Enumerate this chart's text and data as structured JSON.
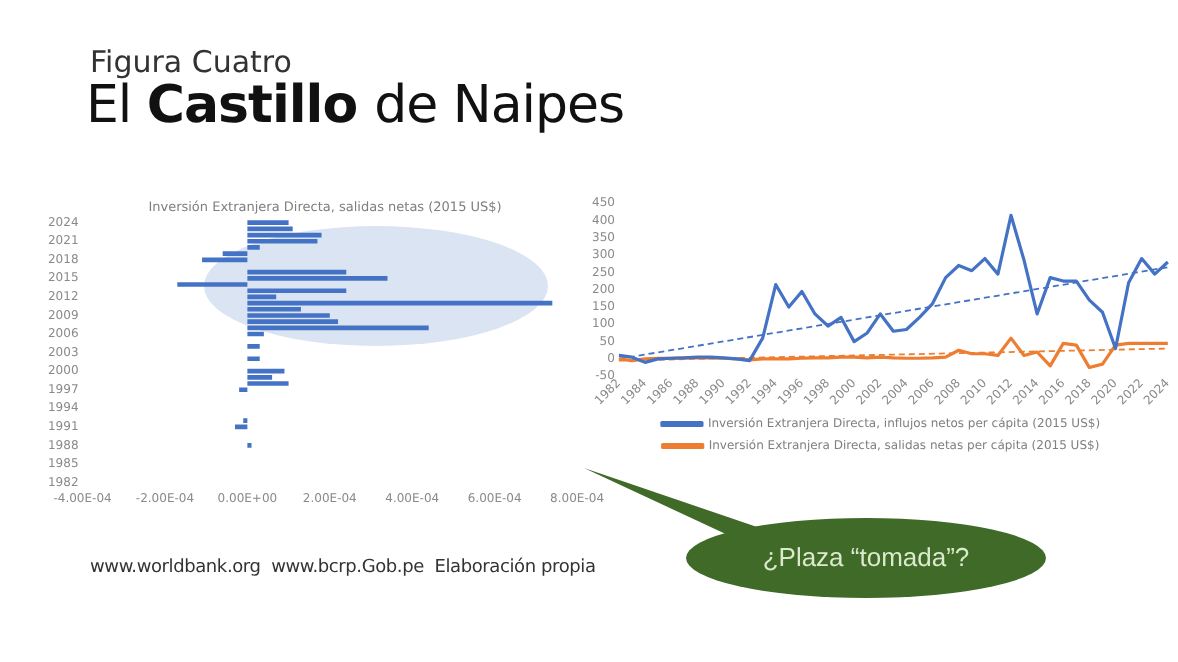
{
  "chart_data": [
    {
      "type": "other",
      "title": "El Castillo de Naipes",
      "subtitle": "Figura Cuatro",
      "annotations": [
        "www.worldbank.org  www.bcrp.Gob.pe  Elaboración propia",
        "¿Plaza “tomada”?"
      ]
    },
    {
      "type": "bar",
      "orientation": "horizontal",
      "title": "Inversión Extranjera Directa, salidas netas (2015 US$)",
      "color": "#4472c4",
      "categories": [
        "2024",
        null,
        null,
        "2021",
        null,
        null,
        "2018",
        null,
        null,
        "2015",
        null,
        null,
        "2012",
        null,
        null,
        "2009",
        null,
        null,
        "2006",
        null,
        null,
        "2003",
        null,
        null,
        "2000",
        null,
        null,
        "1997",
        null,
        null,
        "1994",
        null,
        null,
        "1991",
        null,
        null,
        "1988",
        null,
        null,
        "1985",
        null,
        null,
        "1982"
      ],
      "values": [
        0.0001,
        0.00011,
        0.00018,
        0.00017,
        3e-05,
        -6e-05,
        -0.00011,
        0,
        0.00024,
        0.00034,
        -0.00017,
        0.00024,
        7e-05,
        0.00074,
        0.00013,
        0.0002,
        0.00022,
        0.00044,
        4e-05,
        0,
        3e-05,
        0,
        3e-05,
        0,
        9e-05,
        6e-05,
        0.0001,
        -2e-05,
        0,
        0,
        0,
        0,
        -1e-05,
        -3e-05,
        0,
        0,
        1e-05,
        0,
        0,
        0,
        0,
        0,
        0
      ],
      "xlim": [
        -0.0004,
        0.0008
      ],
      "xticks": [
        {
          "value": -0.0004,
          "label": "-4.00E-04"
        },
        {
          "value": -0.0002,
          "label": "-2.00E-04"
        },
        {
          "value": 0,
          "label": "0.00E+00"
        },
        {
          "value": 0.0002,
          "label": "2.00E-04"
        },
        {
          "value": 0.0004,
          "label": "4.00E-04"
        },
        {
          "value": 0.0006,
          "label": "6.00E-04"
        },
        {
          "value": 0.0008,
          "label": "8.00E-04"
        }
      ]
    },
    {
      "type": "line",
      "legend": "bottom",
      "marker": "none",
      "ylim": [
        -50,
        450
      ],
      "yticks": [
        -50,
        0,
        50,
        100,
        150,
        200,
        250,
        300,
        350,
        400,
        450
      ],
      "categories": [
        "1982",
        null,
        "1984",
        null,
        "1986",
        null,
        "1988",
        null,
        "1990",
        null,
        "1992",
        null,
        "1994",
        null,
        "1996",
        null,
        "1998",
        null,
        "2000",
        null,
        "2002",
        null,
        "2004",
        null,
        "2006",
        null,
        "2008",
        null,
        "2010",
        null,
        "2012",
        null,
        "2014",
        null,
        "2016",
        null,
        "2018",
        null,
        "2020",
        null,
        "2022",
        null,
        "2024"
      ],
      "series": [
        {
          "name": "Inversión Extranjera Directa, influjos netos per cápita (2015 US$)",
          "color": "#4472c4",
          "values": [
            10,
            5,
            -10,
            0,
            2,
            3,
            5,
            5,
            3,
            0,
            -5,
            60,
            215,
            150,
            195,
            130,
            95,
            120,
            50,
            75,
            130,
            80,
            85,
            120,
            160,
            235,
            270,
            255,
            290,
            245,
            415,
            285,
            130,
            235,
            225,
            225,
            170,
            135,
            30,
            220,
            290,
            245,
            280
          ]
        },
        {
          "name": "Inversión Extranjera Directa, salidas netas per cápita (2015 US$)",
          "color": "#ed7d31",
          "values": [
            0,
            -5,
            0,
            2,
            2,
            3,
            3,
            3,
            2,
            0,
            -3,
            0,
            0,
            0,
            2,
            3,
            3,
            5,
            5,
            3,
            5,
            3,
            2,
            2,
            3,
            5,
            25,
            15,
            15,
            10,
            60,
            10,
            20,
            -20,
            45,
            40,
            -25,
            -15,
            40,
            45,
            45,
            45,
            45
          ]
        },
        {
          "type": "line",
          "color": "#4472c4",
          "line_style": "dashed",
          "values": [
            0,
            null,
            null,
            null,
            null,
            null,
            null,
            null,
            null,
            null,
            null,
            null,
            null,
            null,
            null,
            null,
            null,
            null,
            null,
            null,
            null,
            null,
            null,
            null,
            null,
            null,
            null,
            null,
            null,
            null,
            null,
            null,
            null,
            null,
            null,
            null,
            null,
            null,
            null,
            null,
            null,
            null,
            265
          ]
        },
        {
          "type": "line",
          "color": "#ed7d31",
          "line_style": "dashed",
          "values": [
            -5,
            null,
            null,
            null,
            null,
            null,
            null,
            null,
            null,
            null,
            null,
            null,
            null,
            null,
            null,
            null,
            null,
            null,
            null,
            null,
            null,
            null,
            null,
            null,
            null,
            null,
            null,
            null,
            null,
            null,
            null,
            null,
            null,
            null,
            null,
            null,
            null,
            null,
            null,
            null,
            null,
            null,
            30
          ]
        }
      ]
    }
  ]
}
